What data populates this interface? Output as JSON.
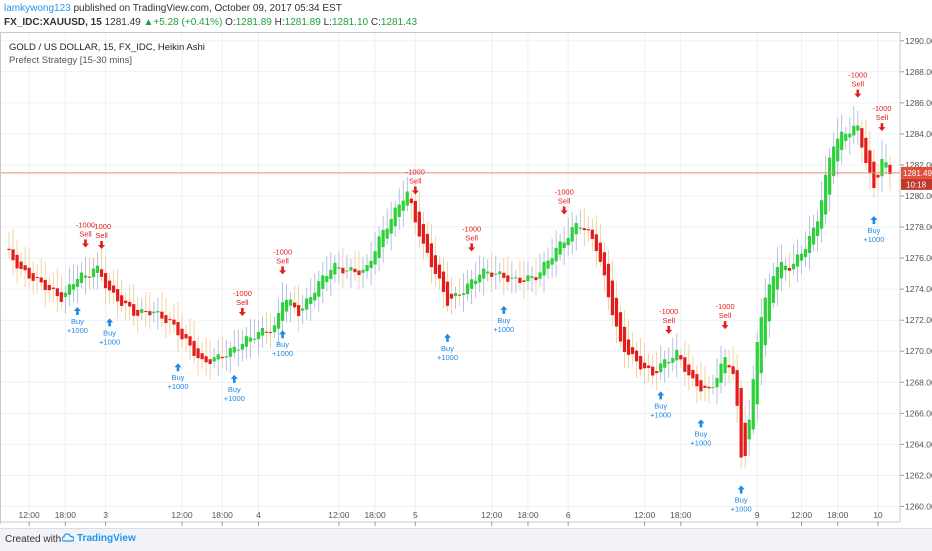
{
  "header": {
    "author": "lamkywong123",
    "published_text": "published on TradingView.com, October 09, 2017 05:34 EST",
    "symbol": "FX_IDC:XAUUSD, 15",
    "price": "1281.49",
    "change": "+5.28 (+0.41%)",
    "o_label": "O:",
    "o_value": "1281.89",
    "h_label": "H:",
    "h_value": "1281.89",
    "l_label": "L:",
    "l_value": "1281.10",
    "c_label": "C:",
    "c_value": "1281.43"
  },
  "legend": {
    "title": "GOLD / US DOLLAR, 15, FX_IDC, Heikin Ashi",
    "strategy": "Prefect Strategy [15-30 mins]"
  },
  "footer": {
    "created_with": "Created with",
    "brand": "TradingView"
  },
  "colors": {
    "up": "#2ed13a",
    "down": "#e51c1c",
    "wick": "#a6b4d9",
    "buy": "#1e88e5",
    "sell": "#e51c1c",
    "last_price_bg": "#e0503c",
    "current_line": "#e88a7a",
    "grid": "#eef0f4"
  },
  "chart_data": {
    "type": "candlestick",
    "style": "Heikin Ashi",
    "ylim": [
      1259,
      1290.5
    ],
    "y_ticks": [
      "1260.00",
      "1262.00",
      "1264.00",
      "1266.00",
      "1268.00",
      "1270.00",
      "1272.00",
      "1274.00",
      "1276.00",
      "1278.00",
      "1280.00",
      "1282.00",
      "1284.00",
      "1286.00",
      "1288.00",
      "1290.00"
    ],
    "x_ticks": [
      "12:00",
      "18:00",
      "3",
      "12:00",
      "18:00",
      "4",
      "12:00",
      "18:00",
      "5",
      "12:00",
      "18:00",
      "6",
      "12:00",
      "18:00",
      "9",
      "12:00",
      "18:00",
      "10"
    ],
    "last_price": "1281.49",
    "countdown": "10:18",
    "close_path": [
      [
        0,
        1276.6
      ],
      [
        2,
        1275.0
      ],
      [
        5,
        1274.3
      ],
      [
        7,
        1273.4
      ],
      [
        9,
        1274.8
      ],
      [
        10,
        1274.6
      ],
      [
        11,
        1275.6
      ],
      [
        12,
        1274.7
      ],
      [
        13,
        1273.8
      ],
      [
        16,
        1272.2
      ],
      [
        18,
        1272.6
      ],
      [
        20,
        1272.1
      ],
      [
        24,
        1269.1
      ],
      [
        27,
        1270.0
      ],
      [
        29,
        1270.5
      ],
      [
        33,
        1271.6
      ],
      [
        34,
        1273.8
      ],
      [
        36,
        1272.4
      ],
      [
        40,
        1275.6
      ],
      [
        44,
        1275.0
      ],
      [
        46,
        1277.5
      ],
      [
        49,
        1280.5
      ],
      [
        51,
        1276.7
      ],
      [
        54,
        1273.2
      ],
      [
        58,
        1275.0
      ],
      [
        62,
        1274.7
      ],
      [
        65,
        1274.8
      ],
      [
        68,
        1277.0
      ],
      [
        70,
        1278.5
      ],
      [
        72,
        1277.0
      ],
      [
        75,
        1270.5
      ],
      [
        79,
        1268.5
      ],
      [
        82,
        1269.8
      ],
      [
        84,
        1268.1
      ],
      [
        86,
        1267.4
      ],
      [
        88,
        1269.5
      ],
      [
        89,
        1268.3
      ],
      [
        90,
        1262.2
      ],
      [
        91,
        1266.4
      ],
      [
        92,
        1272.0
      ],
      [
        94,
        1275.4
      ],
      [
        96,
        1275.3
      ],
      [
        98,
        1277.2
      ],
      [
        99,
        1278.3
      ],
      [
        101,
        1283.3
      ],
      [
        104,
        1284.5
      ],
      [
        106,
        1280.5
      ],
      [
        107,
        1282.5
      ],
      [
        108,
        1281.4
      ]
    ],
    "signals": [
      {
        "type": "buy",
        "index": 9,
        "label": "Buy",
        "qty": "+1000"
      },
      {
        "type": "sell",
        "index": 10,
        "label": "Sell",
        "qty": "-1000"
      },
      {
        "type": "sell",
        "index": 12,
        "label": "Sell",
        "qty": "-1000"
      },
      {
        "type": "buy",
        "index": 13,
        "label": "Buy",
        "qty": "+1000"
      },
      {
        "type": "buy",
        "index": 21,
        "label": "Buy",
        "qty": "+1000"
      },
      {
        "type": "buy",
        "index": 28,
        "label": "Buy",
        "qty": "+1000"
      },
      {
        "type": "sell",
        "index": 29,
        "label": "Sell",
        "qty": "-1000"
      },
      {
        "type": "sell",
        "index": 34,
        "label": "Sell",
        "qty": "-1000"
      },
      {
        "type": "buy",
        "index": 34,
        "label": "Buy",
        "qty": "+1000"
      },
      {
        "type": "sell",
        "index": 50,
        "label": "Sell",
        "qty": "-1000"
      },
      {
        "type": "buy",
        "index": 54,
        "label": "Buy",
        "qty": "+1000"
      },
      {
        "type": "sell",
        "index": 57,
        "label": "Sell",
        "qty": "-1000"
      },
      {
        "type": "buy",
        "index": 61,
        "label": "Buy",
        "qty": "+1000"
      },
      {
        "type": "sell",
        "index": 68,
        "label": "Sell",
        "qty": "-1000"
      },
      {
        "type": "sell",
        "index": 81,
        "label": "Sell",
        "qty": "-1000"
      },
      {
        "type": "buy",
        "index": 80,
        "label": "Buy",
        "qty": "+1000"
      },
      {
        "type": "buy",
        "index": 85,
        "label": "Buy",
        "qty": "+1000"
      },
      {
        "type": "sell",
        "index": 88,
        "label": "Sell",
        "qty": "-1000"
      },
      {
        "type": "buy",
        "index": 90,
        "label": "Buy",
        "qty": "+1000"
      },
      {
        "type": "sell",
        "index": 104,
        "label": "Sell",
        "qty": "-1000"
      },
      {
        "type": "buy",
        "index": 106,
        "label": "Buy",
        "qty": "+1000"
      },
      {
        "type": "sell",
        "index": 107,
        "label": "Sell",
        "qty": "-1000"
      }
    ]
  }
}
